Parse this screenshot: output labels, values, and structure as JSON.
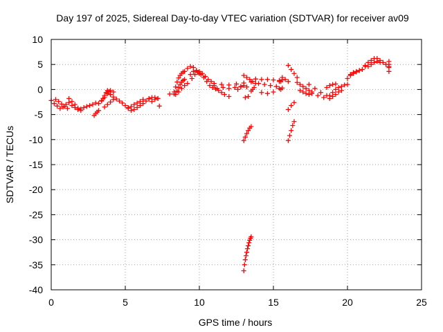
{
  "chart_data": {
    "type": "scatter",
    "title": "Day 197 of 2025, Sidereal Day-to-day VTEC variation (SDTVAR) for receiver av09",
    "xlabel": "GPS time / hours",
    "ylabel": "SDTVAR / TECUs",
    "xlim": [
      0,
      25
    ],
    "ylim": [
      -40,
      10
    ],
    "x_ticks": [
      0,
      5,
      10,
      15,
      20,
      25
    ],
    "y_ticks": [
      10,
      5,
      0,
      -5,
      -10,
      -15,
      -20,
      -25,
      -30,
      -35,
      -40
    ],
    "grid": true,
    "marker": "plus",
    "color": "#ff0000",
    "series": [
      {
        "name": "av09",
        "tracks": [
          {
            "x": [
              0.0,
              0.2,
              0.4,
              0.6,
              0.8,
              1.0,
              1.2,
              1.4,
              1.6,
              1.8,
              2.0
            ],
            "y": [
              -2.2,
              -2.8,
              -3.3,
              -3.8,
              -3.5,
              -3.0,
              -2.6,
              -3.2,
              -3.6,
              -4.0,
              -4.2
            ]
          },
          {
            "x": [
              0.3,
              0.5,
              0.7,
              0.9,
              1.1
            ],
            "y": [
              -2.0,
              -2.4,
              -2.9,
              -3.4,
              -3.8
            ]
          },
          {
            "x": [
              1.2,
              1.4,
              1.6,
              1.8
            ],
            "y": [
              -1.8,
              -2.4,
              -3.0,
              -3.7
            ]
          },
          {
            "x": [
              2.0,
              2.2,
              2.4,
              2.6,
              2.8,
              3.0
            ],
            "y": [
              -3.9,
              -3.6,
              -3.4,
              -3.2,
              -3.0,
              -2.7
            ]
          },
          {
            "x": [
              2.9,
              3.0,
              3.1,
              3.2
            ],
            "y": [
              -5.2,
              -4.8,
              -4.5,
              -4.2
            ]
          },
          {
            "x": [
              3.2,
              3.4,
              3.6,
              3.8,
              4.0,
              4.2
            ],
            "y": [
              -2.8,
              -2.3,
              -1.6,
              -0.8,
              -0.2,
              -0.5
            ]
          },
          {
            "x": [
              3.4,
              3.5,
              3.6,
              3.7,
              3.8,
              3.9,
              4.0
            ],
            "y": [
              -2.2,
              -1.8,
              -1.2,
              -0.6,
              -0.2,
              -0.4,
              -1.0
            ]
          },
          {
            "x": [
              3.6,
              3.8,
              4.0,
              4.2
            ],
            "y": [
              -3.5,
              -3.0,
              -2.5,
              -2.0
            ]
          },
          {
            "x": [
              4.0,
              4.2,
              4.4,
              4.6,
              4.8,
              5.0,
              5.2
            ],
            "y": [
              -1.0,
              -1.5,
              -1.9,
              -2.3,
              -2.7,
              -3.2,
              -3.6
            ]
          },
          {
            "x": [
              5.2,
              5.4,
              5.6,
              5.8,
              6.0,
              6.2,
              6.4,
              6.6
            ],
            "y": [
              -3.8,
              -4.2,
              -4.0,
              -3.6,
              -3.2,
              -2.8,
              -2.3,
              -1.9
            ]
          },
          {
            "x": [
              5.4,
              5.6,
              5.8,
              6.0,
              6.2
            ],
            "y": [
              -3.4,
              -3.0,
              -2.7,
              -2.4,
              -2.0
            ]
          },
          {
            "x": [
              6.6,
              6.8,
              7.0,
              7.2
            ],
            "y": [
              -1.8,
              -1.6,
              -1.6,
              -1.8
            ]
          },
          {
            "x": [
              6.8,
              7.0
            ],
            "y": [
              -2.4,
              -2.0
            ]
          },
          {
            "x": [
              7.2,
              7.3
            ],
            "y": [
              -1.8,
              -3.3
            ]
          },
          {
            "x": [
              8.0,
              8.3
            ],
            "y": [
              -0.9,
              -0.9
            ]
          },
          {
            "x": [
              8.3,
              8.4,
              8.5,
              8.6,
              8.7,
              8.8,
              8.9
            ],
            "y": [
              -0.5,
              0.5,
              1.5,
              2.3,
              2.8,
              3.2,
              3.5
            ]
          },
          {
            "x": [
              8.4,
              8.5,
              8.6,
              8.7,
              8.8,
              8.9,
              9.0
            ],
            "y": [
              -1.0,
              -0.3,
              0.4,
              1.0,
              1.5,
              1.8,
              2.0
            ]
          },
          {
            "x": [
              8.6,
              8.8,
              9.0,
              9.2
            ],
            "y": [
              -0.5,
              0.2,
              0.8,
              1.2
            ]
          },
          {
            "x": [
              9.0,
              9.2,
              9.4,
              9.6,
              9.8,
              10.0
            ],
            "y": [
              3.6,
              4.2,
              4.6,
              4.4,
              3.8,
              3.2
            ]
          },
          {
            "x": [
              9.4,
              9.6,
              9.8,
              10.0,
              10.2,
              10.4,
              10.6,
              10.8,
              11.0
            ],
            "y": [
              3.0,
              3.6,
              3.8,
              3.6,
              3.2,
              2.6,
              2.0,
              1.6,
              1.2
            ]
          },
          {
            "x": [
              9.5,
              9.7,
              9.9,
              10.1,
              10.3,
              10.5,
              10.7,
              10.9,
              11.1,
              11.3,
              11.5,
              11.7,
              12.0
            ],
            "y": [
              2.2,
              3.0,
              3.4,
              3.0,
              2.4,
              1.6,
              0.8,
              0.4,
              0.1,
              -0.2,
              -0.6,
              -1.0,
              -1.4
            ]
          },
          {
            "x": [
              11.0,
              11.5,
              12.0,
              12.5,
              13.0,
              13.5
            ],
            "y": [
              0.8,
              1.0,
              0.9,
              1.1,
              1.3,
              1.5
            ]
          },
          {
            "x": [
              11.2,
              11.6,
              12.0,
              12.4,
              12.8,
              13.2
            ],
            "y": [
              0.2,
              0.4,
              0.2,
              0.4,
              0.6,
              0.5
            ]
          },
          {
            "x": [
              12.6,
              12.8,
              13.0
            ],
            "y": [
              0.0,
              0.5,
              0.8
            ]
          },
          {
            "x": [
              13.0,
              13.2,
              13.4,
              13.6,
              13.8
            ],
            "y": [
              2.8,
              2.4,
              2.0,
              1.6,
              1.2
            ]
          },
          {
            "x": [
              13.0,
              13.1,
              13.2,
              13.3,
              13.4,
              13.5
            ],
            "y": [
              -10.2,
              -9.5,
              -8.8,
              -8.2,
              -7.7,
              -7.4
            ]
          },
          {
            "x": [
              13.0,
              13.05,
              13.1,
              13.15,
              13.2,
              13.25,
              13.3,
              13.35,
              13.4,
              13.45,
              13.5
            ],
            "y": [
              -36.2,
              -35.0,
              -34.0,
              -33.2,
              -32.5,
              -31.8,
              -31.2,
              -30.6,
              -30.1,
              -29.7,
              -29.4
            ]
          },
          {
            "x": [
              13.1,
              13.3
            ],
            "y": [
              -1.6,
              -1.4
            ]
          },
          {
            "x": [
              13.5,
              13.6,
              13.7
            ],
            "y": [
              -0.3,
              0.0,
              0.4
            ]
          },
          {
            "x": [
              13.8,
              14.2,
              14.6,
              15.0,
              15.4
            ],
            "y": [
              2.1,
              2.0,
              2.0,
              1.9,
              1.6
            ]
          },
          {
            "x": [
              14.0,
              14.4,
              14.8,
              15.2
            ],
            "y": [
              1.2,
              1.0,
              0.8,
              0.6
            ]
          },
          {
            "x": [
              14.2,
              14.6,
              15.0
            ],
            "y": [
              -0.6,
              -0.8,
              -0.5
            ]
          },
          {
            "x": [
              15.4,
              15.5,
              15.6
            ],
            "y": [
              1.8,
              1.6,
              1.9
            ]
          },
          {
            "x": [
              15.4,
              15.5,
              15.6
            ],
            "y": [
              0.2,
              0.0,
              0.3
            ]
          },
          {
            "x": [
              15.6,
              15.8,
              16.0
            ],
            "y": [
              2.4,
              2.0,
              1.6
            ]
          },
          {
            "x": [
              16.0,
              16.2,
              16.4,
              16.6
            ],
            "y": [
              4.8,
              4.0,
              3.2,
              2.4
            ]
          },
          {
            "x": [
              16.0,
              16.1,
              16.2,
              16.3,
              16.4
            ],
            "y": [
              -10.2,
              -9.2,
              -8.2,
              -7.2,
              -6.4
            ]
          },
          {
            "x": [
              16.0,
              16.2,
              16.4
            ],
            "y": [
              -4.0,
              -3.2,
              -2.6
            ]
          },
          {
            "x": [
              16.6,
              16.8,
              17.0,
              17.2,
              17.4,
              17.6
            ],
            "y": [
              1.4,
              1.0,
              0.6,
              0.2,
              -0.2,
              -0.5
            ]
          },
          {
            "x": [
              16.8,
              17.0,
              17.2,
              17.4
            ],
            "y": [
              -0.2,
              -0.5,
              -0.8,
              -1.0
            ]
          },
          {
            "x": [
              17.4,
              17.8,
              18.2,
              18.6
            ],
            "y": [
              1.0,
              0.2,
              -0.6,
              -1.2
            ]
          },
          {
            "x": [
              17.6,
              18.0,
              18.4,
              18.8
            ],
            "y": [
              -0.8,
              -1.2,
              -1.6,
              -1.8
            ]
          },
          {
            "x": [
              18.8,
              19.0,
              19.2,
              19.4,
              19.6,
              19.8,
              20.0
            ],
            "y": [
              -1.2,
              -0.6,
              0.0,
              0.4,
              0.6,
              0.9,
              1.0
            ]
          },
          {
            "x": [
              18.6,
              18.8,
              19.0,
              19.2
            ],
            "y": [
              0.4,
              0.8,
              1.0,
              1.1
            ]
          },
          {
            "x": [
              19.0,
              19.2,
              19.4,
              19.6
            ],
            "y": [
              -1.4,
              -1.0,
              -0.5,
              -0.2
            ]
          },
          {
            "x": [
              20.0,
              20.2,
              20.4,
              20.6,
              20.8,
              21.0,
              21.2
            ],
            "y": [
              2.2,
              2.8,
              3.2,
              3.6,
              3.8,
              4.0,
              4.6
            ]
          },
          {
            "x": [
              20.2,
              20.4,
              20.6,
              20.8
            ],
            "y": [
              3.0,
              3.4,
              3.5,
              3.8
            ]
          },
          {
            "x": [
              21.2,
              21.4,
              21.6,
              21.8,
              22.0,
              22.2,
              22.4,
              22.6,
              22.8
            ],
            "y": [
              4.8,
              5.4,
              5.8,
              6.2,
              6.2,
              5.8,
              5.4,
              5.0,
              4.6
            ]
          },
          {
            "x": [
              21.4,
              21.6,
              21.8,
              22.0,
              22.2
            ],
            "y": [
              4.6,
              5.0,
              5.4,
              5.6,
              5.4
            ]
          },
          {
            "x": [
              22.8,
              22.8,
              22.8,
              22.8
            ],
            "y": [
              3.6,
              4.4,
              5.0,
              5.6
            ]
          }
        ]
      }
    ]
  }
}
